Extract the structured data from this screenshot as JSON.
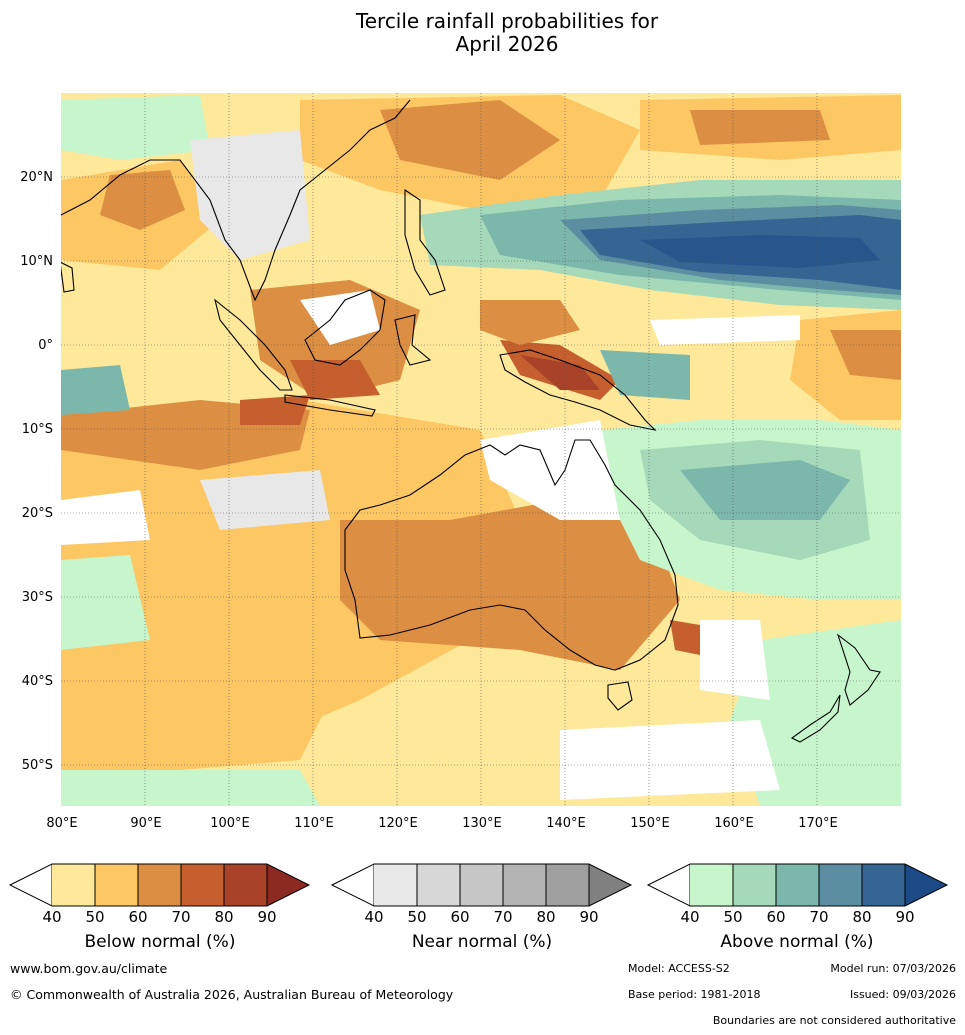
{
  "title": {
    "line1": "Tercile rainfall probabilities for",
    "line2": "April 2026"
  },
  "map": {
    "lon_ticks": [
      "80°E",
      "90°E",
      "100°E",
      "110°E",
      "120°E",
      "130°E",
      "140°E",
      "150°E",
      "160°E",
      "170°E"
    ],
    "lat_ticks": [
      "20°N",
      "10°N",
      "0°",
      "10°S",
      "20°S",
      "30°S",
      "40°S",
      "50°S"
    ],
    "extent": {
      "lon_min": 80,
      "lon_max": 180,
      "lat_min": -55,
      "lat_max": 30
    }
  },
  "colorbars": [
    {
      "label": "Below normal (%)",
      "ticks": [
        "40",
        "50",
        "60",
        "70",
        "80",
        "90"
      ],
      "colors": [
        "#fee89a",
        "#fdc763",
        "#dc8f42",
        "#c5602e",
        "#a8432a",
        "#8c2a22"
      ]
    },
    {
      "label": "Near normal (%)",
      "ticks": [
        "40",
        "50",
        "60",
        "70",
        "80",
        "90"
      ],
      "colors": [
        "#e8e8e8",
        "#d7d7d7",
        "#c6c6c6",
        "#b4b4b4",
        "#9f9f9f",
        "#808080"
      ]
    },
    {
      "label": "Above normal (%)",
      "ticks": [
        "40",
        "50",
        "60",
        "70",
        "80",
        "90"
      ],
      "colors": [
        "#c8f6cc",
        "#a5d9ba",
        "#7cb7ac",
        "#5b8ea0",
        "#346593",
        "#1b4a86"
      ]
    }
  ],
  "footer": {
    "website": "www.bom.gov.au/climate",
    "copyright": "© Commonwealth of Australia 2026, Australian Bureau of Meteorology",
    "model": "Model: ACCESS-S2",
    "model_run": "Model run: 07/03/2026",
    "base_period": "Base period: 1981-2018",
    "issued": "Issued: 09/03/2026",
    "boundaries_note": "Boundaries are not considered authoritative"
  }
}
